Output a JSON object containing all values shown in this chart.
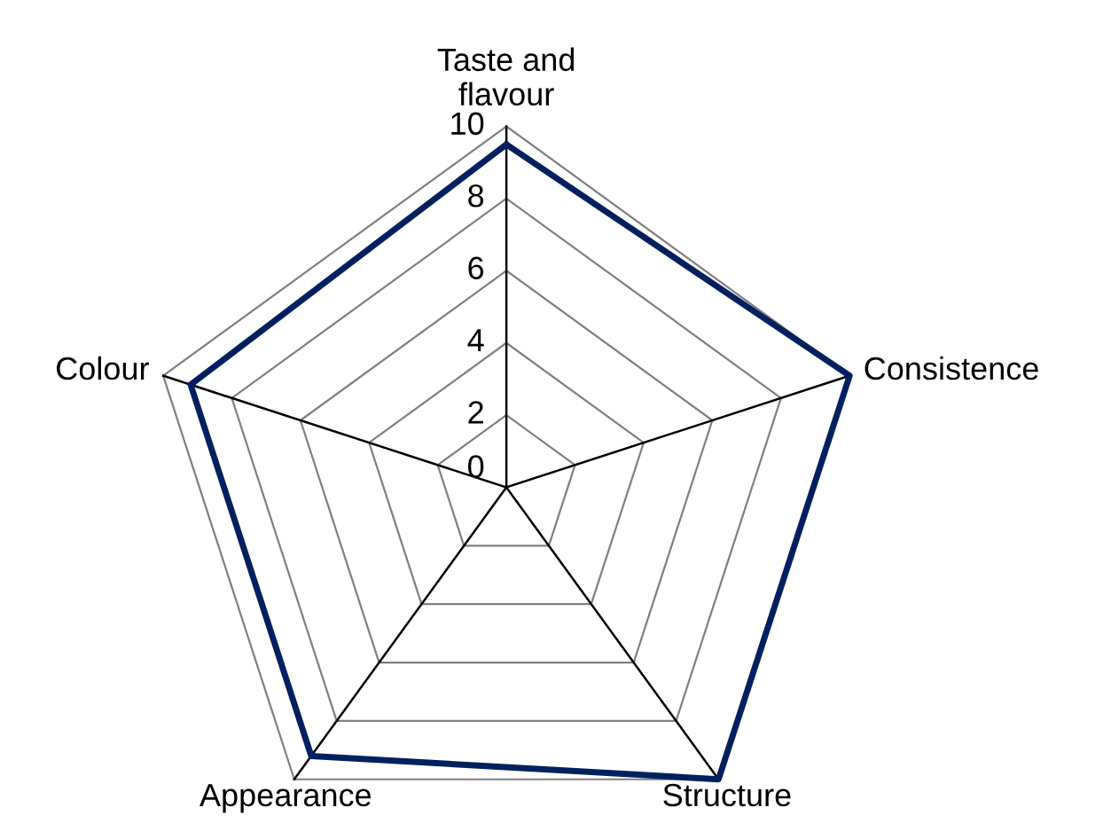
{
  "chart_data": {
    "type": "radar",
    "categories": [
      "Taste and\nflavour",
      "Consistence",
      "Structure",
      "Appearance",
      "Colour"
    ],
    "series": [
      {
        "color": "#002060",
        "values": [
          9.5,
          10,
          10,
          9.2,
          9.2
        ]
      }
    ],
    "ylim": [
      0,
      10
    ],
    "yticks": [
      0,
      2,
      4,
      6,
      8,
      10
    ],
    "grid": true,
    "marker": "none",
    "line_style": "solid"
  }
}
